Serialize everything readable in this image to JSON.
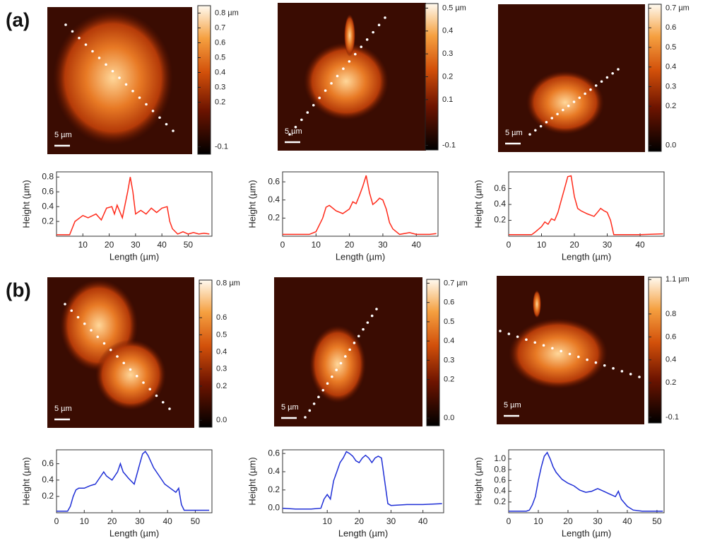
{
  "panel_labels": [
    "(a)",
    "(b)"
  ],
  "images": [
    {
      "scale_bar": "5 µm",
      "colorbar": {
        "clim": [
          -0.15,
          0.85
        ],
        "ticks": [
          {
            "value": 0.8,
            "label": "0.8 µm"
          },
          0.7,
          0.6,
          0.5,
          0.4,
          0.3,
          0.2,
          -0.1
        ]
      }
    },
    {
      "scale_bar": "5 µm",
      "colorbar": {
        "clim": [
          -0.12,
          0.52
        ],
        "ticks": [
          {
            "value": 0.5,
            "label": "0.5 µm"
          },
          0.4,
          0.3,
          0.2,
          0.1,
          -0.1
        ]
      }
    },
    {
      "scale_bar": "5 µm",
      "colorbar": {
        "clim": [
          -0.03,
          0.72
        ],
        "ticks": [
          {
            "value": 0.7,
            "label": "0.7 µm"
          },
          0.6,
          0.5,
          0.4,
          0.3,
          0.2,
          {
            "value": 0,
            "label": "0.0"
          }
        ]
      }
    },
    {
      "scale_bar": "5 µm",
      "colorbar": {
        "clim": [
          -0.04,
          0.82
        ],
        "ticks": [
          {
            "value": 0.8,
            "label": "0.8 µm"
          },
          0.6,
          0.5,
          0.4,
          0.3,
          0.2,
          {
            "value": 0,
            "label": "0.0"
          }
        ]
      }
    },
    {
      "scale_bar": "5 µm",
      "colorbar": {
        "clim": [
          -0.04,
          0.72
        ],
        "ticks": [
          {
            "value": 0.7,
            "label": "0.7 µm"
          },
          0.6,
          0.5,
          0.4,
          0.3,
          0.2,
          {
            "value": 0,
            "label": "0.0"
          }
        ]
      }
    },
    {
      "scale_bar": "5 µm",
      "colorbar": {
        "clim": [
          -0.15,
          1.12
        ],
        "ticks": [
          {
            "value": 1.1,
            "label": "1.1 µm"
          },
          0.8,
          0.6,
          0.4,
          0.2,
          -0.1
        ]
      }
    }
  ],
  "chart_data": [
    {
      "type": "line",
      "xlabel": "Length (µm)",
      "ylabel": "Height (µm)",
      "color": "#ff2a1a",
      "xlim": [
        0,
        59
      ],
      "xticks": [
        10,
        20,
        30,
        40,
        50
      ],
      "ylim": [
        0,
        0.87
      ],
      "yticks": [
        0.2,
        0.4,
        0.6,
        0.8
      ],
      "x": [
        0,
        3,
        5,
        7,
        10,
        12,
        15,
        17,
        19,
        21,
        22,
        23,
        25,
        27,
        28,
        29,
        30,
        32,
        34,
        36,
        38,
        40,
        42,
        43,
        44,
        46,
        48,
        50,
        52,
        54,
        56,
        58
      ],
      "values": [
        0.02,
        0.02,
        0.02,
        0.2,
        0.28,
        0.25,
        0.3,
        0.22,
        0.38,
        0.4,
        0.3,
        0.42,
        0.25,
        0.6,
        0.8,
        0.6,
        0.3,
        0.35,
        0.3,
        0.38,
        0.32,
        0.38,
        0.4,
        0.2,
        0.1,
        0.03,
        0.06,
        0.03,
        0.05,
        0.03,
        0.04,
        0.03
      ]
    },
    {
      "type": "line",
      "xlabel": "Length (µm)",
      "ylabel": "Height (µm)",
      "color": "#ff2a1a",
      "xlim": [
        0,
        46.5
      ],
      "xticks": [
        0,
        10,
        20,
        30,
        40
      ],
      "ylim": [
        0,
        0.71
      ],
      "yticks": [
        0.2,
        0.4,
        0.6
      ],
      "x": [
        0,
        4,
        8,
        10,
        12,
        13,
        14,
        16,
        18,
        20,
        21,
        22,
        23,
        24,
        25,
        26,
        27,
        28,
        29,
        30,
        31,
        32,
        33,
        35,
        38,
        40,
        44,
        46
      ],
      "values": [
        0.02,
        0.02,
        0.02,
        0.05,
        0.2,
        0.32,
        0.34,
        0.28,
        0.25,
        0.3,
        0.38,
        0.36,
        0.45,
        0.55,
        0.67,
        0.48,
        0.35,
        0.38,
        0.42,
        0.4,
        0.3,
        0.15,
        0.08,
        0.02,
        0.04,
        0.02,
        0.02,
        0.03
      ]
    },
    {
      "type": "line",
      "xlabel": "Length (µm)",
      "ylabel": "Height (µm)",
      "color": "#ff2a1a",
      "xlim": [
        0,
        47.3
      ],
      "xticks": [
        0,
        10,
        20,
        30,
        40
      ],
      "ylim": [
        0,
        0.81
      ],
      "yticks": [
        0.2,
        0.4,
        0.6
      ],
      "x": [
        0,
        4,
        7,
        8,
        10,
        11,
        12,
        13,
        14,
        15,
        16,
        17,
        18,
        19,
        20,
        21,
        22,
        24,
        26,
        27,
        28,
        29,
        30,
        31,
        32,
        35,
        40,
        47
      ],
      "values": [
        0.02,
        0.02,
        0.02,
        0.05,
        0.12,
        0.18,
        0.15,
        0.22,
        0.2,
        0.3,
        0.45,
        0.6,
        0.75,
        0.76,
        0.5,
        0.35,
        0.32,
        0.28,
        0.25,
        0.3,
        0.35,
        0.32,
        0.3,
        0.2,
        0.02,
        0.02,
        0.02,
        0.03
      ]
    },
    {
      "type": "line",
      "xlabel": "Length (µm)",
      "ylabel": "Height (µm)",
      "color": "#1f2fd6",
      "xlim": [
        0,
        56
      ],
      "xticks": [
        0,
        10,
        20,
        30,
        40,
        50
      ],
      "ylim": [
        0,
        0.77
      ],
      "yticks": [
        0.2,
        0.4,
        0.6
      ],
      "x": [
        0,
        2,
        4,
        5,
        6,
        7,
        8,
        10,
        12,
        14,
        16,
        17,
        18,
        20,
        22,
        23,
        24,
        26,
        28,
        30,
        31,
        32,
        33,
        35,
        37,
        39,
        41,
        43,
        44,
        45,
        46,
        50,
        55
      ],
      "values": [
        0.02,
        0.02,
        0.02,
        0.08,
        0.2,
        0.28,
        0.3,
        0.3,
        0.33,
        0.35,
        0.45,
        0.5,
        0.45,
        0.4,
        0.5,
        0.6,
        0.5,
        0.42,
        0.35,
        0.6,
        0.72,
        0.75,
        0.7,
        0.55,
        0.45,
        0.35,
        0.3,
        0.25,
        0.3,
        0.1,
        0.03,
        0.03,
        0.03
      ]
    },
    {
      "type": "line",
      "xlabel": "Length (µm)",
      "ylabel": "Height (µm)",
      "color": "#1f2fd6",
      "xlim": [
        -4,
        46.5
      ],
      "xticks": [
        10,
        20,
        30,
        40
      ],
      "ylim": [
        -0.05,
        0.64
      ],
      "yticks": [
        {
          "value": 0,
          "label": "0.0"
        },
        0.2,
        0.4,
        0.6
      ],
      "x": [
        -4,
        0,
        5,
        8,
        9,
        10,
        11,
        12,
        13,
        14,
        15,
        16,
        17,
        18,
        19,
        20,
        21,
        22,
        23,
        24,
        25,
        26,
        27,
        28,
        29,
        30,
        35,
        40,
        46
      ],
      "values": [
        0,
        -0.01,
        -0.01,
        0,
        0.1,
        0.15,
        0.1,
        0.3,
        0.4,
        0.5,
        0.55,
        0.62,
        0.6,
        0.57,
        0.52,
        0.5,
        0.55,
        0.58,
        0.55,
        0.5,
        0.55,
        0.57,
        0.55,
        0.3,
        0.05,
        0.03,
        0.04,
        0.04,
        0.05
      ]
    },
    {
      "type": "line",
      "xlabel": "Length (µm)",
      "ylabel": "Height (µm)",
      "color": "#1f2fd6",
      "xlim": [
        0,
        52.4
      ],
      "xticks": [
        0,
        10,
        20,
        30,
        40,
        50
      ],
      "ylim": [
        0,
        1.17
      ],
      "yticks": [
        0.2,
        0.4,
        0.6,
        0.8,
        {
          "value": 1,
          "label": "1.0"
        }
      ],
      "x": [
        0,
        3,
        6,
        7,
        8,
        9,
        10,
        11,
        12,
        13,
        14,
        15,
        16,
        18,
        20,
        22,
        24,
        26,
        28,
        30,
        32,
        34,
        36,
        37,
        38,
        40,
        42,
        45,
        52
      ],
      "values": [
        0.03,
        0.03,
        0.03,
        0.05,
        0.15,
        0.3,
        0.6,
        0.85,
        1.05,
        1.12,
        1,
        0.85,
        0.75,
        0.62,
        0.55,
        0.5,
        0.42,
        0.38,
        0.4,
        0.45,
        0.4,
        0.35,
        0.3,
        0.4,
        0.25,
        0.12,
        0.05,
        0.03,
        0.03
      ]
    }
  ]
}
